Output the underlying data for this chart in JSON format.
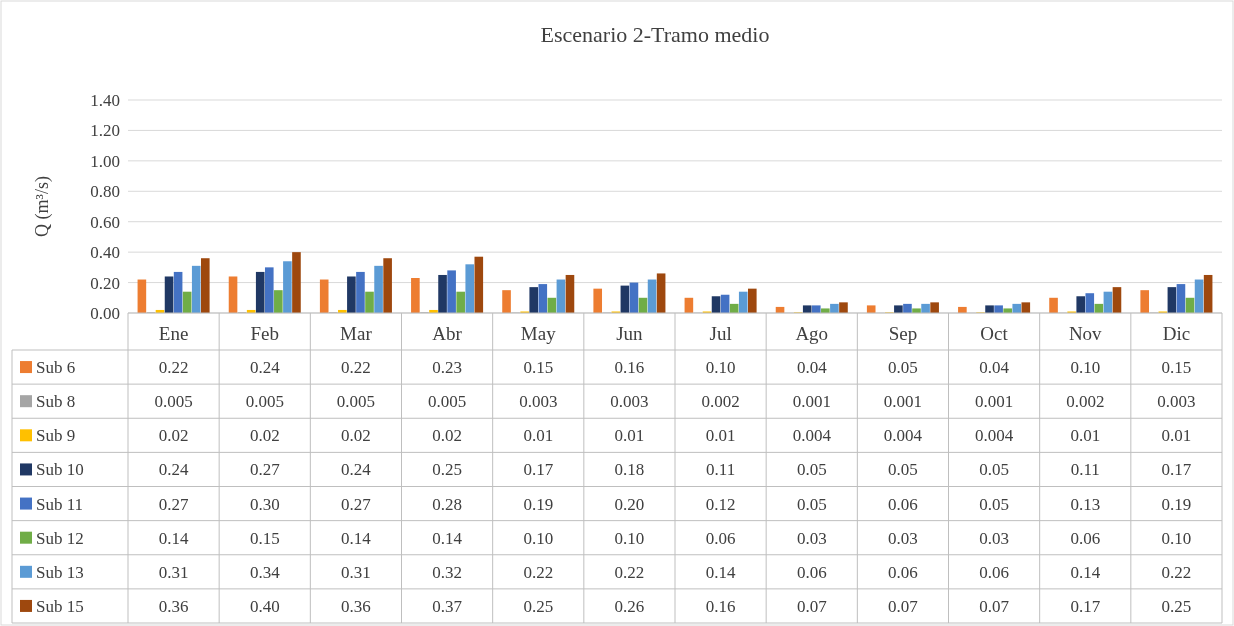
{
  "chart_data": {
    "type": "bar",
    "title": "Escenario 2-Tramo medio",
    "ylabel": "Q (m³/s)",
    "categories": [
      "Ene",
      "Feb",
      "Mar",
      "Abr",
      "May",
      "Jun",
      "Jul",
      "Ago",
      "Sep",
      "Oct",
      "Nov",
      "Dic"
    ],
    "ylim": [
      0,
      1.4
    ],
    "yticks": [
      {
        "value": 0,
        "label": "0.00"
      },
      {
        "value": 0.2,
        "label": "0.20"
      },
      {
        "value": 0.4,
        "label": "0.40"
      },
      {
        "value": 0.6,
        "label": "0.60"
      },
      {
        "value": 0.8,
        "label": "0.80"
      },
      {
        "value": 1,
        "label": "1.00"
      },
      {
        "value": 1.2,
        "label": "1.20"
      },
      {
        "value": 1.4,
        "label": "1.40"
      }
    ],
    "grid": "y",
    "legend": "bottom",
    "series": [
      {
        "name": "Sub 6",
        "color": "#ed7d31",
        "values": [
          0.22,
          0.24,
          0.22,
          0.23,
          0.15,
          0.16,
          0.1,
          0.04,
          0.05,
          0.04,
          0.1,
          0.15
        ],
        "value_labels": [
          "0.22",
          "0.24",
          "0.22",
          "0.23",
          "0.15",
          "0.16",
          "0.10",
          "0.04",
          "0.05",
          "0.04",
          "0.10",
          "0.15"
        ]
      },
      {
        "name": "Sub 8",
        "color": "#a5a5a5",
        "values": [
          0.005,
          0.005,
          0.005,
          0.005,
          0.003,
          0.003,
          0.002,
          0.001,
          0.001,
          0.001,
          0.002,
          0.003
        ],
        "value_labels": [
          "0.005",
          "0.005",
          "0.005",
          "0.005",
          "0.003",
          "0.003",
          "0.002",
          "0.001",
          "0.001",
          "0.001",
          "0.002",
          "0.003"
        ]
      },
      {
        "name": "Sub 9",
        "color": "#ffc000",
        "values": [
          0.02,
          0.02,
          0.02,
          0.02,
          0.01,
          0.01,
          0.01,
          0.004,
          0.004,
          0.004,
          0.01,
          0.01
        ],
        "value_labels": [
          "0.02",
          "0.02",
          "0.02",
          "0.02",
          "0.01",
          "0.01",
          "0.01",
          "0.004",
          "0.004",
          "0.004",
          "0.01",
          "0.01"
        ]
      },
      {
        "name": "Sub 10",
        "color": "#203864",
        "values": [
          0.24,
          0.27,
          0.24,
          0.25,
          0.17,
          0.18,
          0.11,
          0.05,
          0.05,
          0.05,
          0.11,
          0.17
        ],
        "value_labels": [
          "0.24",
          "0.27",
          "0.24",
          "0.25",
          "0.17",
          "0.18",
          "0.11",
          "0.05",
          "0.05",
          "0.05",
          "0.11",
          "0.17"
        ]
      },
      {
        "name": "Sub 11",
        "color": "#4472c4",
        "values": [
          0.27,
          0.3,
          0.27,
          0.28,
          0.19,
          0.2,
          0.12,
          0.05,
          0.06,
          0.05,
          0.13,
          0.19
        ],
        "value_labels": [
          "0.27",
          "0.30",
          "0.27",
          "0.28",
          "0.19",
          "0.20",
          "0.12",
          "0.05",
          "0.06",
          "0.05",
          "0.13",
          "0.19"
        ]
      },
      {
        "name": "Sub 12",
        "color": "#70ad47",
        "values": [
          0.14,
          0.15,
          0.14,
          0.14,
          0.1,
          0.1,
          0.06,
          0.03,
          0.03,
          0.03,
          0.06,
          0.1
        ],
        "value_labels": [
          "0.14",
          "0.15",
          "0.14",
          "0.14",
          "0.10",
          "0.10",
          "0.06",
          "0.03",
          "0.03",
          "0.03",
          "0.06",
          "0.10"
        ]
      },
      {
        "name": "Sub 13",
        "color": "#5b9bd5",
        "values": [
          0.31,
          0.34,
          0.31,
          0.32,
          0.22,
          0.22,
          0.14,
          0.06,
          0.06,
          0.06,
          0.14,
          0.22
        ],
        "value_labels": [
          "0.31",
          "0.34",
          "0.31",
          "0.32",
          "0.22",
          "0.22",
          "0.14",
          "0.06",
          "0.06",
          "0.06",
          "0.14",
          "0.22"
        ]
      },
      {
        "name": "Sub 15",
        "color": "#9e480e",
        "values": [
          0.36,
          0.4,
          0.36,
          0.37,
          0.25,
          0.26,
          0.16,
          0.07,
          0.07,
          0.07,
          0.17,
          0.25
        ],
        "value_labels": [
          "0.36",
          "0.40",
          "0.36",
          "0.37",
          "0.25",
          "0.26",
          "0.16",
          "0.07",
          "0.07",
          "0.07",
          "0.17",
          "0.25"
        ]
      }
    ]
  }
}
